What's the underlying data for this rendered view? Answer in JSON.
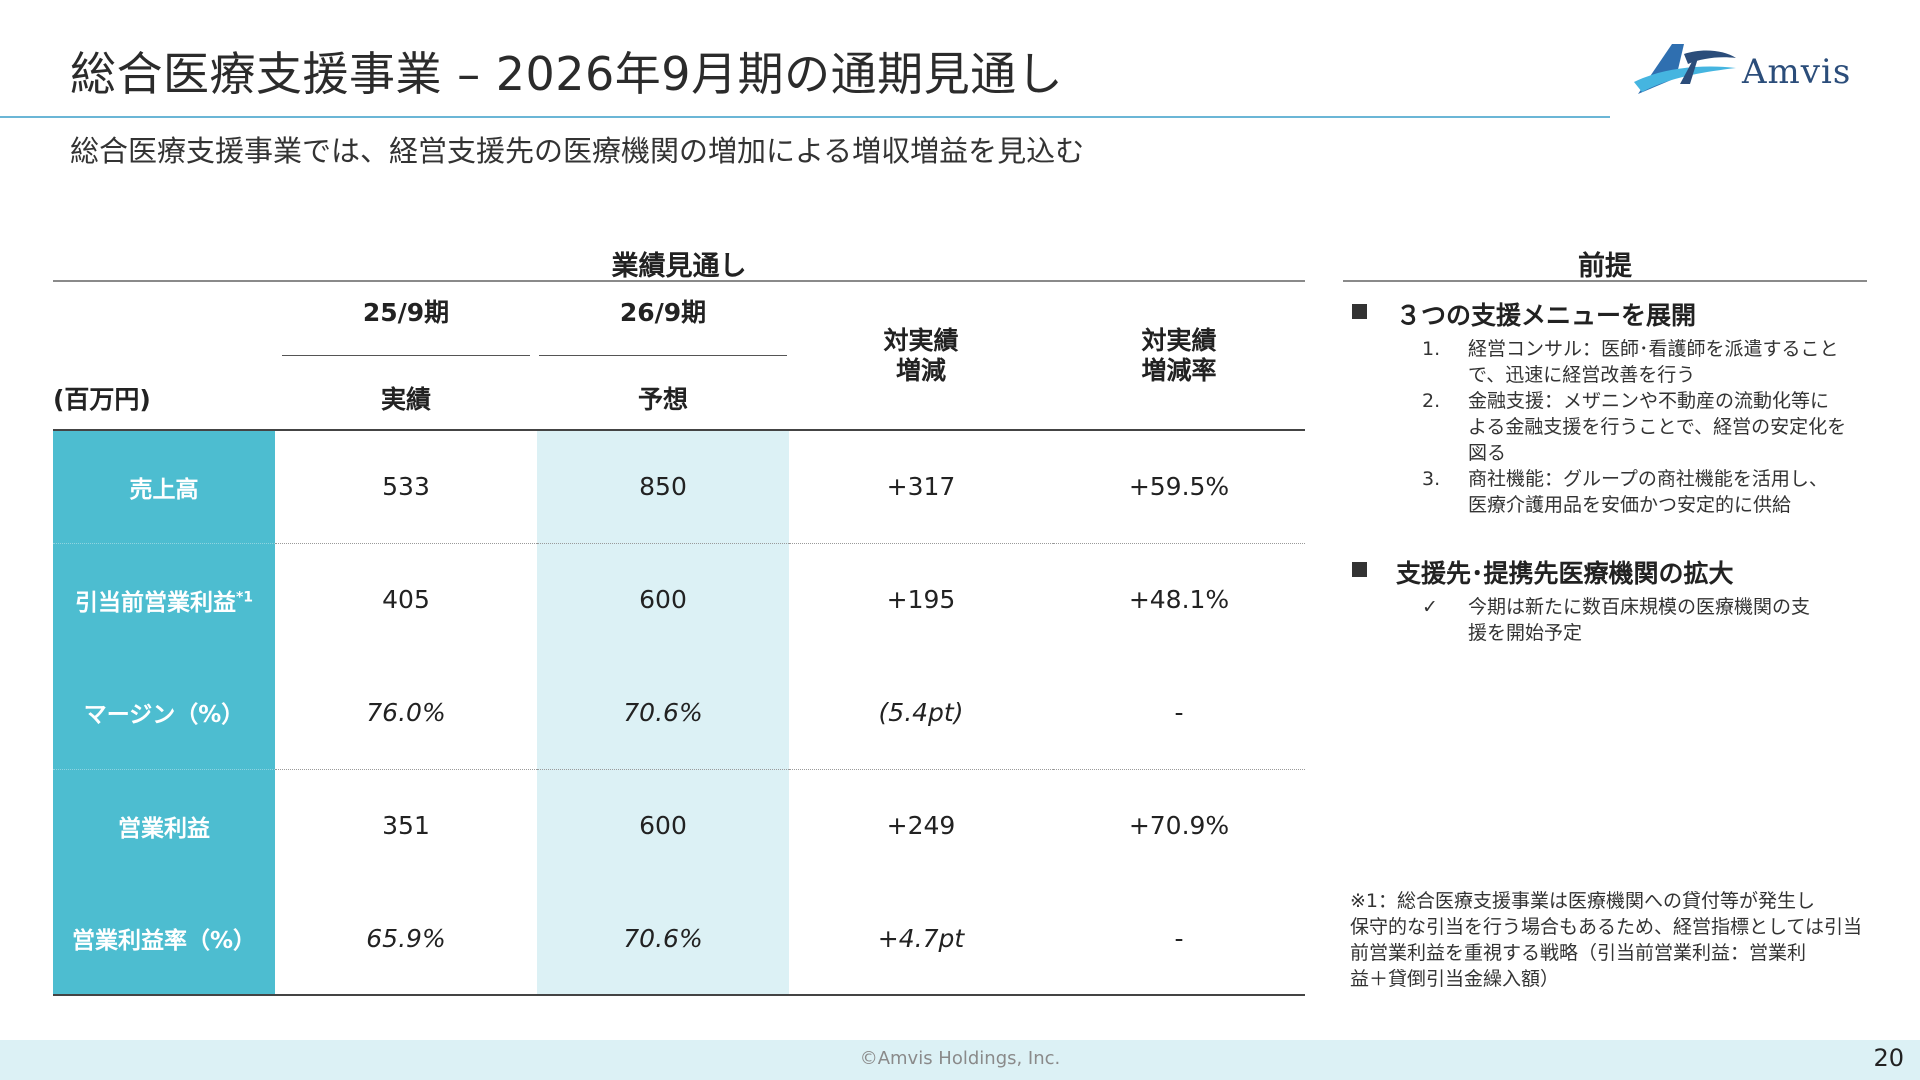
{
  "slide": {
    "title": "総合医療支援事業 – 2026年9月期の通期見通し",
    "subtitle": "総合医療支援事業では、経営支援先の医療機関の増加による増収増益を見込む",
    "logo_text": "Amvis",
    "footer_copyright": "©Amvis Holdings, Inc.",
    "page_number": "20"
  },
  "performance": {
    "heading": "業績見通し",
    "unit_label": "(百万円)",
    "period_actual": "25/9期",
    "period_forecast": "26/9期",
    "sub_actual": "実績",
    "sub_forecast": "予想",
    "col_change_line1": "対実績",
    "col_change_line2": "増減",
    "col_rate_line1": "対実績",
    "col_rate_line2": "増減率",
    "rows": [
      {
        "label": "売上高",
        "sup": "",
        "actual": "533",
        "forecast": "850",
        "change": "+317",
        "rate": "+59.5%"
      },
      {
        "label": "引当前営業利益",
        "sup": "*1",
        "actual": "405",
        "forecast": "600",
        "change": "+195",
        "rate": "+48.1%"
      },
      {
        "label": "マージン（%）",
        "sup": "",
        "actual": "76.0%",
        "forecast": "70.6%",
        "change": "(5.4pt)",
        "rate": "-"
      },
      {
        "label": "営業利益",
        "sup": "",
        "actual": "351",
        "forecast": "600",
        "change": "+249",
        "rate": "+70.9%"
      },
      {
        "label": "営業利益率（%）",
        "sup": "",
        "actual": "65.9%",
        "forecast": "70.6%",
        "change": "+4.7pt",
        "rate": "-"
      }
    ]
  },
  "premises": {
    "heading": "前提",
    "section1_title": "３つの支援メニューを展開",
    "section1_items": [
      {
        "num": "1.",
        "line1": "経営コンサル：医師･看護師を派遣すること",
        "line2": "で、迅速に経営改善を行う",
        "line3": ""
      },
      {
        "num": "2.",
        "line1": "金融支援：メザニンや不動産の流動化等に",
        "line2": "よる金融支援を行うことで、経営の安定化を",
        "line3": "図る"
      },
      {
        "num": "3.",
        "line1": "商社機能：グループの商社機能を活用し、",
        "line2": "医療介護用品を安価かつ安定的に供給",
        "line3": ""
      }
    ],
    "section2_title": "支援先･提携先医療機関の拡大",
    "section2_check": "✓",
    "section2_line1": "今期は新たに数百床規模の医療機関の支",
    "section2_line2": "援を開始予定"
  },
  "footnote": {
    "line1": "※1：総合医療支援事業は医療機関への貸付等が発生し",
    "line2": "保守的な引当を行う場合もあるため、経営指標としては引当",
    "line3": "前営業利益を重視する戦略（引当前営業利益：営業利",
    "line4": "益＋貸倒引当金繰入額）"
  }
}
